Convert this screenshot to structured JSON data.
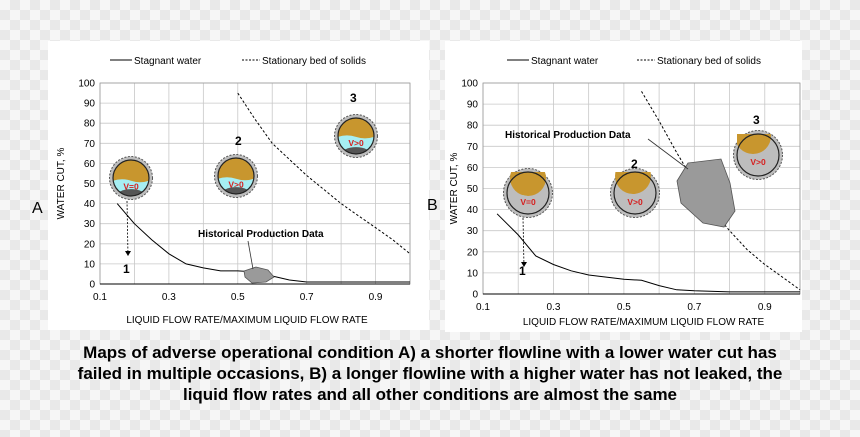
{
  "colors": {
    "oil": "#c8962e",
    "water": "#a6eef2",
    "solids": "#555555",
    "pipe_wall": "#8a8a8a",
    "bubble_red": "#d62020",
    "hpd_fill": "#9a9a9a"
  },
  "panel_letters": [
    "A",
    "B"
  ],
  "caption_lines": [
    "Maps of adverse operational condition A) a shorter flowline with a lower water cut has",
    "failed in multiple occasions, B) a longer flowline with a higher water has not leaked, the",
    "liquid flow rates and all other conditions are almost the same"
  ],
  "chart_data": [
    {
      "type": "line",
      "panel": "A",
      "legend": [
        "Stagnant water",
        "Stationary bed of solids"
      ],
      "xlabel": "LIQUID  FLOW RATE/MAXIMUM  LIQUID FLOW RATE",
      "ylabel": "WATER CUT, %",
      "xlim": [
        0.1,
        1.0
      ],
      "ylim": [
        0,
        100
      ],
      "xticks": [
        "0.1",
        "0.3",
        "0.5",
        "0.7",
        "0.9"
      ],
      "yticks": [
        "0",
        "10",
        "20",
        "30",
        "40",
        "50",
        "60",
        "70",
        "80",
        "90",
        "100"
      ],
      "grid": true,
      "series": [
        {
          "name": "Stagnant water",
          "style": "solid",
          "x": [
            0.15,
            0.2,
            0.25,
            0.3,
            0.35,
            0.4,
            0.45,
            0.5,
            0.55,
            0.6,
            0.65,
            0.7,
            0.8,
            0.9,
            1.0
          ],
          "y": [
            40,
            30,
            22,
            15,
            10,
            8,
            6.5,
            6.5,
            6,
            4,
            2,
            1,
            1,
            1,
            1
          ]
        },
        {
          "name": "Stationary bed of solids",
          "style": "dashed",
          "x": [
            0.5,
            0.55,
            0.6,
            0.65,
            0.7,
            0.75,
            0.8,
            0.85,
            0.9,
            0.95,
            1.0
          ],
          "y": [
            95,
            82,
            70,
            62,
            54,
            47,
            40,
            34,
            28,
            22,
            15
          ]
        }
      ],
      "annotations": [
        {
          "label": "1",
          "pipe_label": "V=0",
          "x": 0.18,
          "y": 10
        },
        {
          "label": "2",
          "pipe_label": "V>0",
          "x": 0.5,
          "y": 60
        },
        {
          "label": "3",
          "pipe_label": "V>0",
          "x": 0.88,
          "y": 88
        },
        {
          "label": "Historical Production Data",
          "x": 0.55,
          "y": 25
        }
      ]
    },
    {
      "type": "line",
      "panel": "B",
      "legend": [
        "Stagnant water",
        "Stationary bed of solids"
      ],
      "xlabel": "LIQUID  FLOW RATE/MAXIMUM  LIQUID  FLOW RATE",
      "ylabel": "WATER CUT, %",
      "xlim": [
        0.1,
        1.0
      ],
      "ylim": [
        0,
        100
      ],
      "xticks": [
        "0.1",
        "0.3",
        "0.5",
        "0.7",
        "0.9"
      ],
      "yticks": [
        "0",
        "10",
        "20",
        "30",
        "40",
        "50",
        "60",
        "70",
        "80",
        "90",
        "100"
      ],
      "grid": true,
      "series": [
        {
          "name": "Stagnant water",
          "style": "solid",
          "x": [
            0.14,
            0.2,
            0.25,
            0.3,
            0.35,
            0.4,
            0.45,
            0.5,
            0.55,
            0.6,
            0.65,
            0.7,
            0.8,
            0.9,
            1.0
          ],
          "y": [
            38,
            28,
            18,
            14,
            11,
            9,
            8,
            7,
            6.5,
            4,
            2,
            1.5,
            1,
            1,
            1
          ]
        },
        {
          "name": "Stationary bed of solids",
          "style": "dashed",
          "x": [
            0.55,
            0.6,
            0.65,
            0.7,
            0.75,
            0.8,
            0.85,
            0.9,
            0.95,
            1.0
          ],
          "y": [
            96,
            82,
            67,
            53,
            40,
            30,
            21,
            14,
            8,
            2
          ]
        }
      ],
      "annotations": [
        {
          "label": "1",
          "pipe_label": "V=0",
          "x": 0.22,
          "y": 12
        },
        {
          "label": "2",
          "pipe_label": "V>0",
          "x": 0.58,
          "y": 55
        },
        {
          "label": "3",
          "pipe_label": "V>0",
          "x": 0.92,
          "y": 78
        },
        {
          "label": "Historical Production Data",
          "x": 0.42,
          "y": 75
        }
      ]
    }
  ]
}
